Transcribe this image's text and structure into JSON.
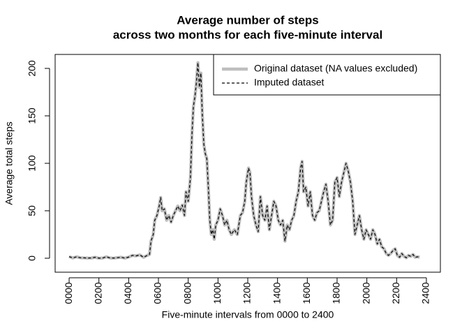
{
  "chart_data": {
    "type": "line",
    "title": [
      "Average number of steps",
      "across two months for each five-minute interval"
    ],
    "xlabel": "Five-minute intervals from 0000 to 2400",
    "ylabel": "Average total steps",
    "x": [
      0,
      25,
      50,
      75,
      100,
      125,
      150,
      175,
      200,
      225,
      250,
      275,
      300,
      325,
      350,
      375,
      400,
      425,
      450,
      475,
      500,
      525,
      540,
      550,
      565,
      575,
      590,
      605,
      615,
      625,
      640,
      655,
      670,
      685,
      700,
      715,
      730,
      745,
      760,
      775,
      785,
      800,
      815,
      825,
      835,
      845,
      855,
      865,
      875,
      885,
      895,
      905,
      915,
      925,
      935,
      945,
      955,
      965,
      975,
      985,
      1000,
      1015,
      1030,
      1045,
      1060,
      1075,
      1090,
      1110,
      1130,
      1150,
      1165,
      1180,
      1190,
      1205,
      1215,
      1225,
      1240,
      1255,
      1270,
      1285,
      1300,
      1315,
      1330,
      1345,
      1360,
      1375,
      1390,
      1405,
      1420,
      1435,
      1450,
      1465,
      1480,
      1495,
      1510,
      1525,
      1540,
      1555,
      1565,
      1575,
      1590,
      1605,
      1620,
      1635,
      1650,
      1665,
      1680,
      1695,
      1710,
      1725,
      1740,
      1755,
      1770,
      1785,
      1800,
      1815,
      1830,
      1845,
      1860,
      1875,
      1890,
      1905,
      1920,
      1935,
      1950,
      1965,
      1980,
      1995,
      2010,
      2025,
      2040,
      2055,
      2070,
      2085,
      2100,
      2115,
      2130,
      2145,
      2160,
      2175,
      2190,
      2205,
      2220,
      2235,
      2250,
      2265,
      2280,
      2295,
      2310,
      2325,
      2340,
      2355
    ],
    "series": [
      {
        "name": "Original dataset (NA values excluded)",
        "color": "#bebebe",
        "dash": "solid",
        "values": [
          1.7,
          0.3,
          1.5,
          0.5,
          0.4,
          0.2,
          0.3,
          1,
          0.1,
          0.2,
          1.5,
          0.3,
          0.2,
          0.6,
          1,
          0.1,
          1.2,
          3,
          2.5,
          3.5,
          1,
          3,
          4,
          18,
          25,
          40,
          45,
          55,
          64,
          50,
          52,
          40,
          45,
          38,
          45,
          50,
          55,
          50,
          56,
          45,
          70,
          60,
          85,
          130,
          160,
          170,
          185,
          206,
          180,
          195,
          150,
          120,
          110,
          105,
          75,
          40,
          25,
          30,
          20,
          35,
          40,
          52,
          45,
          35,
          40,
          30,
          25,
          30,
          25,
          45,
          48,
          60,
          80,
          95,
          90,
          65,
          45,
          35,
          28,
          65,
          45,
          40,
          55,
          30,
          45,
          60,
          55,
          40,
          35,
          40,
          18,
          35,
          30,
          40,
          45,
          60,
          70,
          95,
          102,
          70,
          75,
          55,
          70,
          45,
          40,
          48,
          50,
          60,
          70,
          78,
          60,
          35,
          40,
          80,
          85,
          65,
          80,
          90,
          100,
          92,
          80,
          60,
          25,
          35,
          45,
          30,
          20,
          30,
          25,
          20,
          30,
          25,
          15,
          20,
          12,
          10,
          5,
          3,
          5,
          8,
          10,
          3,
          1,
          5,
          2,
          0.5,
          3,
          2,
          4,
          1,
          1.5,
          1
        ]
      },
      {
        "name": "Imputed dataset",
        "color": "#000000",
        "dash": "dashed",
        "values": [
          1.7,
          0.3,
          1.5,
          0.5,
          0.4,
          0.2,
          0.3,
          1,
          0.1,
          0.2,
          1.5,
          0.3,
          0.2,
          0.6,
          1,
          0.1,
          1.2,
          3,
          2.5,
          3.5,
          1,
          3,
          4,
          18,
          25,
          40,
          45,
          55,
          64,
          50,
          52,
          40,
          45,
          38,
          45,
          50,
          55,
          50,
          56,
          45,
          70,
          60,
          85,
          130,
          160,
          170,
          185,
          206,
          180,
          195,
          150,
          120,
          110,
          105,
          75,
          40,
          25,
          30,
          20,
          35,
          40,
          52,
          45,
          35,
          40,
          30,
          25,
          30,
          25,
          45,
          48,
          60,
          80,
          95,
          90,
          65,
          45,
          35,
          28,
          65,
          45,
          40,
          55,
          30,
          45,
          60,
          55,
          40,
          35,
          40,
          18,
          35,
          30,
          40,
          45,
          60,
          70,
          95,
          102,
          70,
          75,
          55,
          70,
          45,
          40,
          48,
          50,
          60,
          70,
          78,
          60,
          35,
          40,
          80,
          85,
          65,
          80,
          90,
          100,
          92,
          80,
          60,
          25,
          35,
          45,
          30,
          20,
          30,
          25,
          20,
          30,
          25,
          15,
          20,
          12,
          10,
          5,
          3,
          5,
          8,
          10,
          3,
          1,
          5,
          2,
          0.5,
          3,
          2,
          4,
          1,
          1.5,
          1
        ]
      }
    ],
    "xlim": [
      -94,
      2494
    ],
    "ylim": [
      -14.7,
      214.7
    ],
    "xticks": [
      {
        "value": 0,
        "label": "0000"
      },
      {
        "value": 200,
        "label": "0200"
      },
      {
        "value": 400,
        "label": "0400"
      },
      {
        "value": 600,
        "label": "0600"
      },
      {
        "value": 800,
        "label": "0800"
      },
      {
        "value": 1000,
        "label": "1000"
      },
      {
        "value": 1200,
        "label": "1200"
      },
      {
        "value": 1400,
        "label": "1400"
      },
      {
        "value": 1600,
        "label": "1600"
      },
      {
        "value": 1800,
        "label": "1800"
      },
      {
        "value": 2000,
        "label": "2000"
      },
      {
        "value": 2200,
        "label": "2200"
      },
      {
        "value": 2400,
        "label": "2400"
      }
    ],
    "yticks": [
      0,
      50,
      100,
      150,
      200
    ],
    "legend": "top-right"
  }
}
